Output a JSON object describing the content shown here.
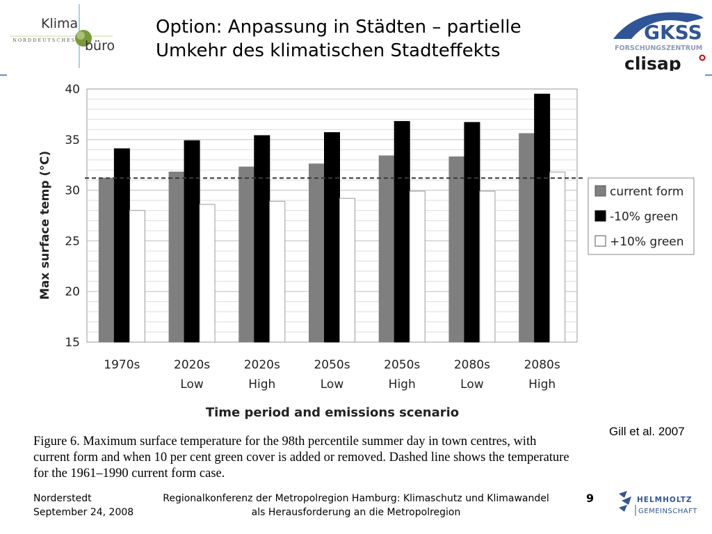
{
  "header": {
    "title_line1": "Option: Anpassung in Städten – partielle",
    "title_line2": "Umkehr des klimatischen Stadteffekts",
    "logo_left": {
      "word1": "Klima",
      "word2": "büro",
      "tagline": "NORDDEUTSCHES"
    },
    "logo_right": {
      "gkss": "GKSS",
      "sub": "FORSCHUNGSZENTRUM",
      "clisap": "clisap"
    }
  },
  "colors": {
    "current_form": "#7f7f7f",
    "minus_green": "#000000",
    "plus_green": "#ffffff",
    "grid": "#c8c8c8",
    "gkss_blue": "#2f5597",
    "dashed_line": "#3a3a3a"
  },
  "chart_data": {
    "type": "bar",
    "ylabel": "Max surface temp (°C)",
    "xlabel": "Time period and emissions scenario",
    "ylim": [
      15,
      40
    ],
    "yticks": [
      "15",
      "20",
      "25",
      "30",
      "35",
      "40"
    ],
    "categories": [
      [
        "1970s",
        ""
      ],
      [
        "2020s",
        "Low"
      ],
      [
        "2020s",
        "High"
      ],
      [
        "2050s",
        "Low"
      ],
      [
        "2050s",
        "High"
      ],
      [
        "2080s",
        "Low"
      ],
      [
        "2080s",
        "High"
      ]
    ],
    "series": [
      {
        "name": "current form",
        "values": [
          31.2,
          31.8,
          32.3,
          32.6,
          33.4,
          33.3,
          35.6
        ]
      },
      {
        "name": "-10% green",
        "values": [
          34.1,
          34.9,
          35.4,
          35.7,
          36.8,
          36.7,
          39.5
        ]
      },
      {
        "name": "+10% green",
        "values": [
          28.0,
          28.6,
          28.9,
          29.2,
          29.9,
          29.9,
          31.8
        ]
      }
    ],
    "reference_line": 31.2,
    "grid": true,
    "legend_position": "right"
  },
  "citation": "Gill et al. 2007",
  "caption_lines": [
    "Figure 6. Maximum surface temperature for the 98th percentile summer day in town centres, with",
    "current form and when 10 per cent green cover is added or removed. Dashed line shows the temperature",
    "for the 1961–1990 current form case."
  ],
  "footer": {
    "location": "Norderstedt",
    "date": "September 24, 2008",
    "event_line1": "Regionalkonferenz der Metropolregion Hamburg: Klimaschutz und Klimawandel",
    "event_line2": "als Herausforderung an die Metropolregion",
    "page": "9",
    "helmholtz_1": "HELMHOLTZ",
    "helmholtz_2": "GEMEINSCHAFT"
  }
}
